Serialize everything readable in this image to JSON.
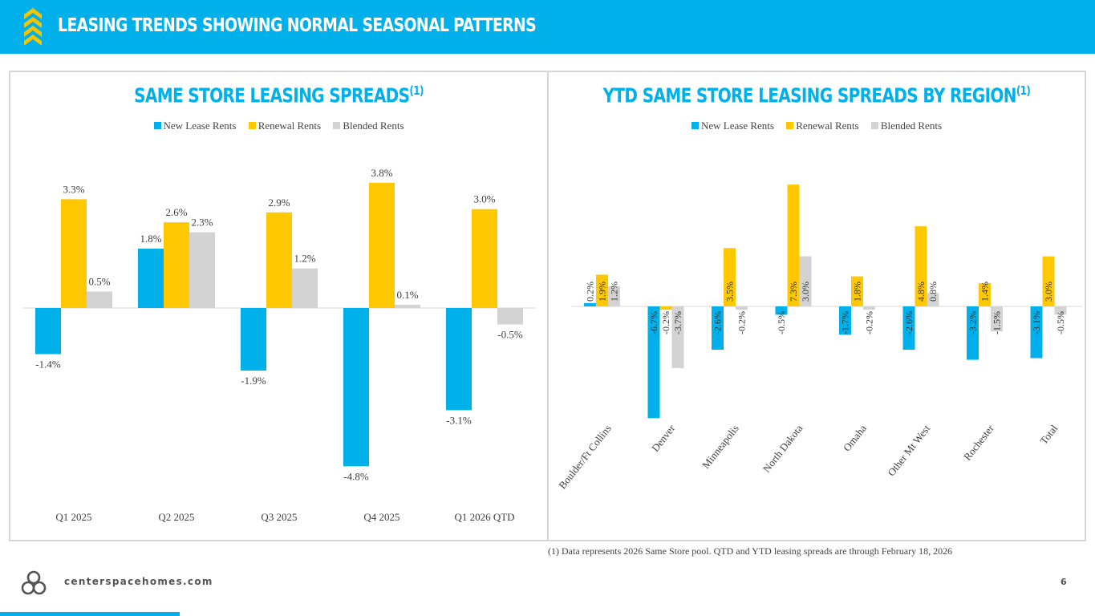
{
  "header": {
    "title": "LEASING TRENDS SHOWING NORMAL SEASONAL PATTERNS",
    "icon": "chevron-stack-icon",
    "color": "#00b0ea",
    "accent": "#f4c400"
  },
  "colors": {
    "new": "#00b0ea",
    "renewal": "#ffc800",
    "blended": "#d3d3d3"
  },
  "chart_data": [
    {
      "type": "bar",
      "title": "SAME STORE LEASING SPREADS",
      "title_sup": "(1)",
      "categories": [
        "Q1 2025",
        "Q2 2025",
        "Q3 2025",
        "Q4 2025",
        "Q1 2026 QTD"
      ],
      "series": [
        {
          "name": "New Lease Rents",
          "values": [
            -1.4,
            1.8,
            -1.9,
            -4.8,
            -3.1
          ],
          "labels": [
            "-1.4%",
            "1.8%",
            "-1.9%",
            "-4.8%",
            "-3.1%"
          ]
        },
        {
          "name": "Renewal Rents",
          "values": [
            3.3,
            2.6,
            2.9,
            3.8,
            3.0
          ],
          "labels": [
            "3.3%",
            "2.6%",
            "2.9%",
            "3.8%",
            "3.0%"
          ]
        },
        {
          "name": "Blended Rents",
          "values": [
            0.5,
            2.3,
            1.2,
            0.1,
            -0.5
          ],
          "labels": [
            "0.5%",
            "2.3%",
            "1.2%",
            "0.1%",
            "-0.5%"
          ]
        }
      ],
      "legend": [
        "New Lease Rents",
        "Renewal Rents",
        "Blended Rents"
      ],
      "legend_position": "top-center",
      "ylim": [
        -6.0,
        5.0
      ],
      "grid": false
    },
    {
      "type": "bar",
      "title": "YTD SAME STORE LEASING SPREADS BY REGION",
      "title_sup": "(1)",
      "categories": [
        "Boulder/Ft Collins",
        "Denver",
        "Minneapolis",
        "North Dakota",
        "Omaha",
        "Other Mt West",
        "Rochester",
        "Total"
      ],
      "series": [
        {
          "name": "New Lease Rents",
          "values": [
            0.2,
            -6.7,
            -2.6,
            -0.5,
            -1.7,
            -2.6,
            -3.2,
            -3.1
          ],
          "labels": [
            "0.2%",
            "-6.7%",
            "-2.6%",
            "-0.5%",
            "-1.7%",
            "-2.6%",
            "-3.2%",
            "-3.1%"
          ]
        },
        {
          "name": "Renewal Rents",
          "values": [
            1.9,
            -0.2,
            3.5,
            7.3,
            1.8,
            4.8,
            1.4,
            3.0
          ],
          "labels": [
            "1.9%",
            "-0.2%",
            "3.5%",
            "7.3%",
            "1.8%",
            "4.8%",
            "1.4%",
            "3.0%"
          ]
        },
        {
          "name": "Blended Rents",
          "values": [
            1.2,
            -3.7,
            -0.2,
            3.0,
            -0.2,
            0.8,
            -1.5,
            -0.5
          ],
          "labels": [
            "1.2%",
            "-3.7%",
            "-0.2%",
            "3.0%",
            "-0.2%",
            "0.8%",
            "-1.5%",
            "-0.5%"
          ]
        }
      ],
      "legend": [
        "New Lease Rents",
        "Renewal Rents",
        "Blended Rents"
      ],
      "legend_position": "top-center",
      "ylim": [
        -8.0,
        8.0
      ],
      "grid": false
    }
  ],
  "footnote": "(1)  Data represents 2026 Same Store pool. QTD and YTD leasing spreads are through February 18, 2026",
  "footer": {
    "website": "centerspacehomes.com",
    "page_number": "6",
    "logo": "centerspace-logo-icon"
  }
}
